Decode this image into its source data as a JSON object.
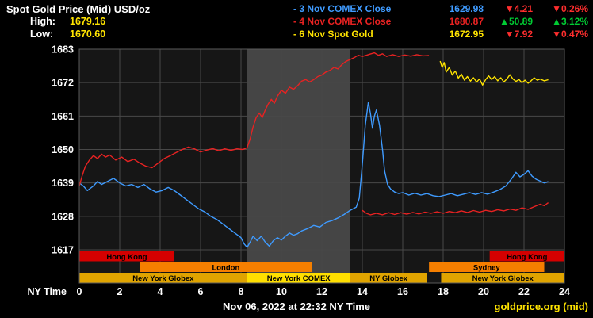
{
  "header": {
    "title": "Spot Gold Price (Mid) USD/oz",
    "high_label": "High:",
    "high_value": "1679.16",
    "low_label": "Low:",
    "low_value": "1670.60",
    "legend": [
      {
        "label": "- 3 Nov COMEX Close",
        "value": "1629.98",
        "change": "▼4.21",
        "change_pct": "▼0.26%",
        "label_color": "#3f9bff",
        "change_color": "#ff2e2e"
      },
      {
        "label": "- 4 Nov COMEX Close",
        "value": "1680.87",
        "change": "▲50.89",
        "change_pct": "▲3.12%",
        "label_color": "#e82222",
        "change_color": "#00cc33"
      },
      {
        "label": "- 6 Nov Spot Gold",
        "value": "1672.95",
        "change": "▼7.92",
        "change_pct": "▼0.47%",
        "label_color": "#ffe400",
        "change_color": "#ff2e2e"
      }
    ]
  },
  "footer": {
    "timestamp": "Nov 06, 2022 at 22:32 NY Time",
    "source": "goldprice.org (mid)"
  },
  "chart_data": {
    "type": "line",
    "title": "Spot Gold Price (Mid) USD/oz",
    "xlabel": "NY Time",
    "xlim": [
      0,
      24
    ],
    "ylim": [
      1617,
      1683
    ],
    "x_ticks": [
      0,
      2,
      4,
      6,
      8,
      10,
      12,
      14,
      16,
      18,
      20,
      22,
      24
    ],
    "y_ticks": [
      1617,
      1628,
      1639,
      1650,
      1661,
      1672,
      1683
    ],
    "plot_bg": "#161616",
    "grid_color": "#484848",
    "comex_band": {
      "start": 8.3,
      "end": 13.4,
      "color": "#454545"
    },
    "series": [
      {
        "id": "3-nov-comex",
        "name": "3 Nov COMEX Close",
        "color": "#3f9bff",
        "points": [
          [
            0,
            1639
          ],
          [
            0.2,
            1638
          ],
          [
            0.4,
            1636.5
          ],
          [
            0.7,
            1638
          ],
          [
            0.9,
            1639.5
          ],
          [
            1.1,
            1638.5
          ],
          [
            1.4,
            1639.5
          ],
          [
            1.7,
            1640.5
          ],
          [
            2,
            1639
          ],
          [
            2.3,
            1638
          ],
          [
            2.6,
            1638.5
          ],
          [
            2.9,
            1637.5
          ],
          [
            3.2,
            1638.5
          ],
          [
            3.5,
            1637
          ],
          [
            3.8,
            1636
          ],
          [
            4.1,
            1636.5
          ],
          [
            4.4,
            1637.5
          ],
          [
            4.7,
            1636.5
          ],
          [
            5,
            1635
          ],
          [
            5.3,
            1633.5
          ],
          [
            5.6,
            1632
          ],
          [
            5.9,
            1630.5
          ],
          [
            6.2,
            1629.5
          ],
          [
            6.5,
            1628
          ],
          [
            6.8,
            1627
          ],
          [
            7.1,
            1625.5
          ],
          [
            7.4,
            1624
          ],
          [
            7.7,
            1622.5
          ],
          [
            8,
            1621
          ],
          [
            8.15,
            1619
          ],
          [
            8.3,
            1617.8
          ],
          [
            8.45,
            1619.5
          ],
          [
            8.6,
            1621.5
          ],
          [
            8.8,
            1620
          ],
          [
            9,
            1621.5
          ],
          [
            9.2,
            1619.5
          ],
          [
            9.4,
            1618.2
          ],
          [
            9.6,
            1620
          ],
          [
            9.8,
            1621
          ],
          [
            10,
            1620.2
          ],
          [
            10.2,
            1621.5
          ],
          [
            10.4,
            1622.5
          ],
          [
            10.6,
            1621.8
          ],
          [
            10.8,
            1622.3
          ],
          [
            11,
            1623.2
          ],
          [
            11.3,
            1624
          ],
          [
            11.6,
            1625
          ],
          [
            11.9,
            1624.5
          ],
          [
            12.2,
            1626
          ],
          [
            12.5,
            1626.6
          ],
          [
            12.8,
            1627.5
          ],
          [
            13.1,
            1628.6
          ],
          [
            13.4,
            1630
          ],
          [
            13.7,
            1631
          ],
          [
            13.85,
            1634
          ],
          [
            14,
            1645
          ],
          [
            14.15,
            1658
          ],
          [
            14.3,
            1665.5
          ],
          [
            14.4,
            1662
          ],
          [
            14.5,
            1657
          ],
          [
            14.6,
            1661
          ],
          [
            14.7,
            1663
          ],
          [
            14.85,
            1658
          ],
          [
            15,
            1650
          ],
          [
            15.1,
            1643
          ],
          [
            15.25,
            1638.5
          ],
          [
            15.4,
            1637
          ],
          [
            15.6,
            1636
          ],
          [
            15.8,
            1635.5
          ],
          [
            16,
            1635.8
          ],
          [
            16.3,
            1635
          ],
          [
            16.6,
            1635.6
          ],
          [
            16.9,
            1635
          ],
          [
            17.2,
            1635.5
          ],
          [
            17.5,
            1634.8
          ],
          [
            17.8,
            1634.5
          ],
          [
            18.1,
            1635
          ],
          [
            18.4,
            1635.5
          ],
          [
            18.7,
            1634.8
          ],
          [
            19,
            1635.3
          ],
          [
            19.3,
            1635.8
          ],
          [
            19.6,
            1635.2
          ],
          [
            19.9,
            1635.8
          ],
          [
            20.2,
            1635.3
          ],
          [
            20.5,
            1636
          ],
          [
            20.8,
            1636.8
          ],
          [
            21.1,
            1638
          ],
          [
            21.4,
            1640.5
          ],
          [
            21.6,
            1642.5
          ],
          [
            21.8,
            1641
          ],
          [
            22,
            1641.8
          ],
          [
            22.2,
            1643
          ],
          [
            22.4,
            1641.2
          ],
          [
            22.6,
            1640.2
          ],
          [
            22.8,
            1639.6
          ],
          [
            23,
            1639
          ],
          [
            23.2,
            1639.4
          ]
        ]
      },
      {
        "id": "4-nov-comex",
        "name": "4 Nov COMEX Close",
        "color": "#e82222",
        "points": [
          [
            0,
            1638
          ],
          [
            0.15,
            1641.5
          ],
          [
            0.3,
            1644.5
          ],
          [
            0.5,
            1646.5
          ],
          [
            0.7,
            1648
          ],
          [
            0.9,
            1647
          ],
          [
            1.1,
            1648.5
          ],
          [
            1.3,
            1647.5
          ],
          [
            1.5,
            1648.2
          ],
          [
            1.8,
            1646.5
          ],
          [
            2.1,
            1647.5
          ],
          [
            2.4,
            1646
          ],
          [
            2.7,
            1646.8
          ],
          [
            3,
            1645.5
          ],
          [
            3.3,
            1644.5
          ],
          [
            3.6,
            1644
          ],
          [
            3.9,
            1645.5
          ],
          [
            4.2,
            1647
          ],
          [
            4.5,
            1648
          ],
          [
            4.8,
            1649
          ],
          [
            5.1,
            1650
          ],
          [
            5.4,
            1650.8
          ],
          [
            5.7,
            1650.2
          ],
          [
            6,
            1649.2
          ],
          [
            6.3,
            1649.8
          ],
          [
            6.6,
            1650.3
          ],
          [
            6.9,
            1649.6
          ],
          [
            7.2,
            1650.2
          ],
          [
            7.5,
            1649.7
          ],
          [
            7.8,
            1650.2
          ],
          [
            8.1,
            1650
          ],
          [
            8.3,
            1650.6
          ],
          [
            8.45,
            1653.5
          ],
          [
            8.6,
            1657.5
          ],
          [
            8.75,
            1660.5
          ],
          [
            8.9,
            1662
          ],
          [
            9.05,
            1660.5
          ],
          [
            9.2,
            1663
          ],
          [
            9.35,
            1665
          ],
          [
            9.5,
            1666.5
          ],
          [
            9.65,
            1665.2
          ],
          [
            9.8,
            1667.5
          ],
          [
            10,
            1669.5
          ],
          [
            10.2,
            1668.5
          ],
          [
            10.4,
            1670.5
          ],
          [
            10.6,
            1669.8
          ],
          [
            10.8,
            1671
          ],
          [
            11,
            1672.5
          ],
          [
            11.2,
            1673
          ],
          [
            11.4,
            1672.2
          ],
          [
            11.6,
            1673
          ],
          [
            11.8,
            1674
          ],
          [
            12,
            1674.5
          ],
          [
            12.2,
            1675.5
          ],
          [
            12.4,
            1676
          ],
          [
            12.6,
            1677
          ],
          [
            12.8,
            1676.5
          ],
          [
            13,
            1678
          ],
          [
            13.2,
            1679
          ],
          [
            13.4,
            1679.6
          ],
          [
            13.6,
            1680.2
          ],
          [
            13.8,
            1681
          ],
          [
            14,
            1680.6
          ],
          [
            14.2,
            1681
          ],
          [
            14.4,
            1681.4
          ],
          [
            14.6,
            1681.8
          ],
          [
            14.8,
            1681
          ],
          [
            15,
            1681.5
          ],
          [
            15.2,
            1680.6
          ],
          [
            15.5,
            1681.2
          ],
          [
            15.8,
            1680.6
          ],
          [
            16.1,
            1681.1
          ],
          [
            16.4,
            1680.7
          ],
          [
            16.7,
            1681.2
          ],
          [
            17,
            1680.8
          ],
          [
            17.3,
            1680.9
          ]
        ]
      },
      {
        "id": "4-nov-comex-evening",
        "name": "4 Nov COMEX Close (evening)",
        "color": "#e82222",
        "points": [
          [
            14,
            1630
          ],
          [
            14.2,
            1629
          ],
          [
            14.4,
            1628.5
          ],
          [
            14.7,
            1629
          ],
          [
            15,
            1628.5
          ],
          [
            15.3,
            1629.2
          ],
          [
            15.6,
            1628.6
          ],
          [
            15.9,
            1629.2
          ],
          [
            16.2,
            1628.7
          ],
          [
            16.5,
            1629.3
          ],
          [
            16.8,
            1628.8
          ],
          [
            17.1,
            1629.4
          ],
          [
            17.4,
            1629
          ],
          [
            17.7,
            1629.5
          ],
          [
            18,
            1629
          ],
          [
            18.3,
            1629.6
          ],
          [
            18.6,
            1629.2
          ],
          [
            18.9,
            1629.8
          ],
          [
            19.2,
            1629.3
          ],
          [
            19.5,
            1629.9
          ],
          [
            19.8,
            1629.4
          ],
          [
            20.1,
            1630
          ],
          [
            20.4,
            1629.6
          ],
          [
            20.7,
            1630.2
          ],
          [
            21,
            1629.8
          ],
          [
            21.3,
            1630.4
          ],
          [
            21.6,
            1630
          ],
          [
            21.9,
            1630.8
          ],
          [
            22.2,
            1630.3
          ],
          [
            22.5,
            1631.2
          ],
          [
            22.8,
            1632
          ],
          [
            23,
            1631.5
          ],
          [
            23.2,
            1632.5
          ]
        ]
      },
      {
        "id": "6-nov-spot",
        "name": "6 Nov Spot Gold",
        "color": "#ffe400",
        "points": [
          [
            17.85,
            1679.1
          ],
          [
            17.95,
            1677
          ],
          [
            18.05,
            1678.6
          ],
          [
            18.15,
            1675.5
          ],
          [
            18.3,
            1677
          ],
          [
            18.45,
            1674.5
          ],
          [
            18.6,
            1675.8
          ],
          [
            18.75,
            1673.5
          ],
          [
            18.9,
            1674.8
          ],
          [
            19.05,
            1672.8
          ],
          [
            19.2,
            1674
          ],
          [
            19.35,
            1672.5
          ],
          [
            19.5,
            1673.6
          ],
          [
            19.65,
            1672.2
          ],
          [
            19.8,
            1673.2
          ],
          [
            19.95,
            1671.2
          ],
          [
            20.1,
            1673
          ],
          [
            20.25,
            1674.2
          ],
          [
            20.4,
            1673
          ],
          [
            20.55,
            1674
          ],
          [
            20.7,
            1672.6
          ],
          [
            20.85,
            1673.6
          ],
          [
            21,
            1672.2
          ],
          [
            21.15,
            1673.2
          ],
          [
            21.3,
            1674.6
          ],
          [
            21.45,
            1673.2
          ],
          [
            21.6,
            1672.4
          ],
          [
            21.75,
            1673
          ],
          [
            21.9,
            1672
          ],
          [
            22.05,
            1672.8
          ],
          [
            22.2,
            1671.8
          ],
          [
            22.35,
            1672.6
          ],
          [
            22.5,
            1673.6
          ],
          [
            22.65,
            1672.8
          ],
          [
            22.8,
            1673.2
          ],
          [
            23,
            1672.6
          ],
          [
            23.2,
            1672.95
          ]
        ]
      }
    ],
    "sessions": [
      {
        "name": "Hong Kong",
        "row": 0,
        "start": 0,
        "end": 4.7,
        "color": "#d40000"
      },
      {
        "name": "Hong Kong",
        "row": 0,
        "start": 20.3,
        "end": 24,
        "color": "#d40000"
      },
      {
        "name": "London",
        "row": 1,
        "start": 3,
        "end": 11.5,
        "color": "#f57f00"
      },
      {
        "name": "Sydney",
        "row": 1,
        "start": 17.3,
        "end": 23,
        "color": "#f57f00"
      },
      {
        "name": "New York Globex",
        "row": 2,
        "start": 0,
        "end": 8.3,
        "color": "#e0a400"
      },
      {
        "name": "New York COMEX",
        "row": 2,
        "start": 8.3,
        "end": 13.4,
        "color": "#ffdf00"
      },
      {
        "name": "NY Globex",
        "row": 2,
        "start": 13.4,
        "end": 17.2,
        "color": "#e0a400"
      },
      {
        "name": "New York Globex",
        "row": 2,
        "start": 17.9,
        "end": 24,
        "color": "#e0a400"
      }
    ]
  }
}
